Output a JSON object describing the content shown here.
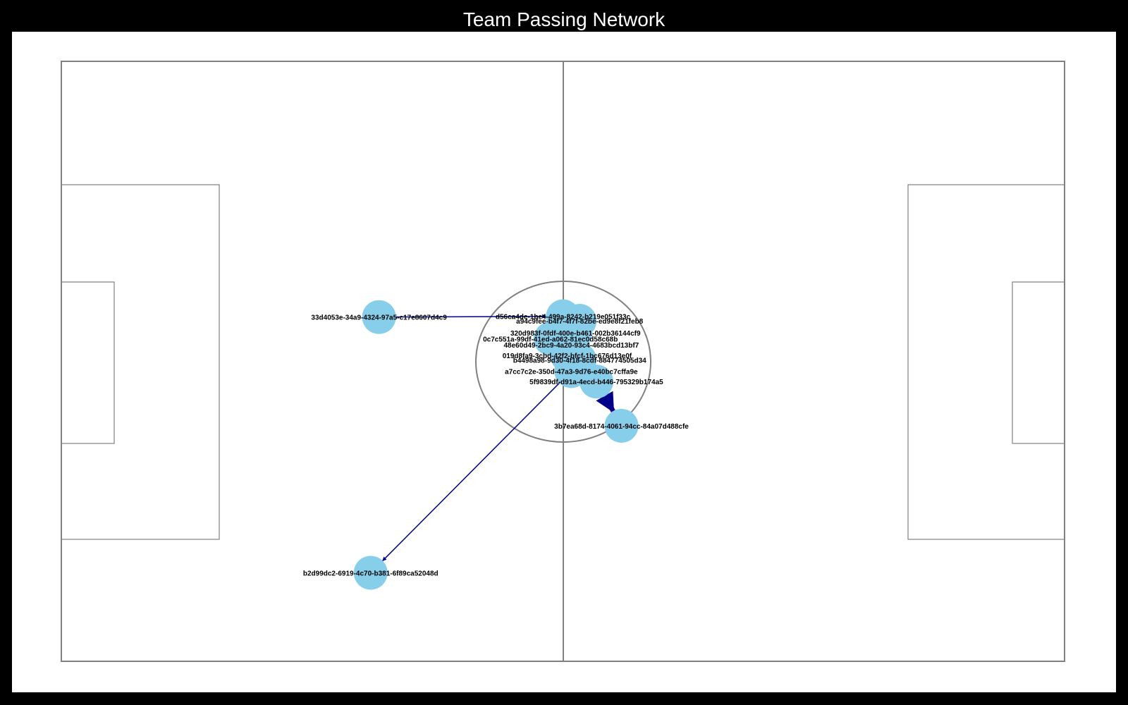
{
  "title": "Team Passing Network",
  "colors": {
    "page_background": "#000000",
    "figure_background": "#ffffff",
    "pitch_lines": "#808080",
    "node_fill": "#87CEEB",
    "edge_light": "#00008B",
    "edge_heavy": "#4B0082",
    "label_text": "#000000"
  },
  "chart_data": {
    "type": "network",
    "x_range": [
      0,
      120
    ],
    "y_range": [
      0,
      80
    ],
    "players": [
      {
        "id": "33d4053e-34a9-4324-97a5-c17e8607d4c9",
        "label": "33d4053e-34a9-4324-97a5-c17e8607d4c9",
        "x": 38.0,
        "y": 34.1
      },
      {
        "id": "d56ca4de-1be4-499a-8242-b219e051f33c",
        "label": "d56ca4de-1be4-499a-8242-b219e051f33c",
        "x": 60.0,
        "y": 34.0
      },
      {
        "id": "a94c9fee-b4f7-4f7f-82be-ed9e8f21feb8",
        "label": "a94c9fee-b4f7-4f7f-82be-ed9e8f21feb8",
        "x": 62.0,
        "y": 34.6
      },
      {
        "id": "320d983f-0fdf-400e-b461-002b36144cf9",
        "label": "320d983f-0fdf-400e-b461-002b36144cf9",
        "x": 61.5,
        "y": 36.2
      },
      {
        "id": "0c7c551a-99df-41ed-a062-81ec0d58c68b",
        "label": "0c7c551a-99df-41ed-a062-81ec0d58c68b",
        "x": 58.5,
        "y": 37.0
      },
      {
        "id": "48e60d49-2bc9-4a20-93c4-4683bcd13bf7",
        "label": "48e60d49-2bc9-4a20-93c4-4683bcd13bf7",
        "x": 61.0,
        "y": 37.8
      },
      {
        "id": "019d8fa9-3cbd-42f2-bfcf-1bc676d13e0f",
        "label": "019d8fa9-3cbd-42f2-bfcf-1bc676d13e0f",
        "x": 60.5,
        "y": 39.2
      },
      {
        "id": "b4498a98-9d30-4f18-8cdf-884774505d34",
        "label": "b4498a98-9d30-4f18-8cdf-884774505d34",
        "x": 62.0,
        "y": 39.8
      },
      {
        "id": "a7cc7c2e-350d-47a3-9d76-e40bc7cffa9e",
        "label": "a7cc7c2e-350d-47a3-9d76-e40bc7cffa9e",
        "x": 61.0,
        "y": 41.3
      },
      {
        "id": "5f9839df-d91a-4ecd-b446-795329b174a5",
        "label": "5f9839df-d91a-4ecd-b446-795329b174a5",
        "x": 64.0,
        "y": 42.7
      },
      {
        "id": "3b7ea68d-8174-4061-94cc-84a07d488cfe",
        "label": "3b7ea68d-8174-4061-94cc-84a07d488cfe",
        "x": 67.0,
        "y": 48.6
      },
      {
        "id": "b2d99dc2-6919-4c70-b381-6f89ca52048d",
        "label": "b2d99dc2-6919-4c70-b381-6f89ca52048d",
        "x": 37.0,
        "y": 68.2
      }
    ],
    "passes": [
      {
        "from": "33d4053e-34a9-4324-97a5-c17e8607d4c9",
        "to": "d56ca4de-1be4-499a-8242-b219e051f33c",
        "count": 1
      },
      {
        "from": "a7cc7c2e-350d-47a3-9d76-e40bc7cffa9e",
        "to": "b2d99dc2-6919-4c70-b381-6f89ca52048d",
        "count": 1
      },
      {
        "from": "5f9839df-d91a-4ecd-b446-795329b174a5",
        "to": "3b7ea68d-8174-4061-94cc-84a07d488cfe",
        "count": 4
      },
      {
        "from": "019d8fa9-3cbd-42f2-bfcf-1bc676d13e0f",
        "to": "5f9839df-d91a-4ecd-b446-795329b174a5",
        "count": 2
      },
      {
        "from": "b4498a98-9d30-4f18-8cdf-884774505d34",
        "to": "a7cc7c2e-350d-47a3-9d76-e40bc7cffa9e",
        "count": 1
      }
    ]
  }
}
